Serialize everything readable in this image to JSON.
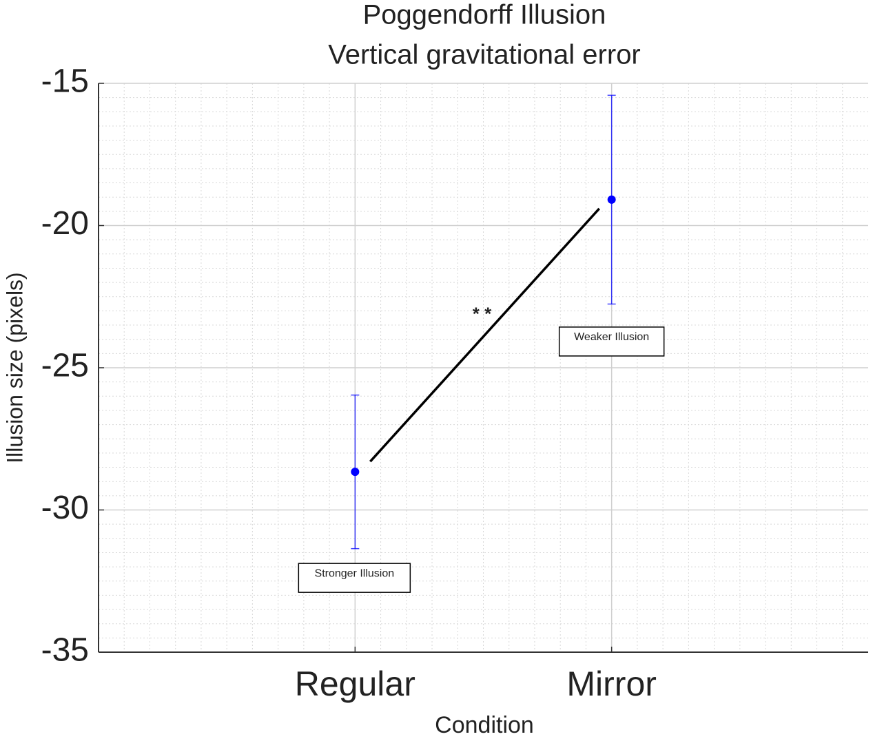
{
  "chart_data": {
    "type": "errorbar",
    "title": "Poggendorff Illusion",
    "subtitle": "Vertical gravitational error",
    "x_label": "Condition",
    "y_label": "Illusion size (pixels)",
    "categories": [
      "Regular",
      "Mirror"
    ],
    "values": [
      -28.66,
      -19.09
    ],
    "errors": [
      2.7,
      3.67
    ],
    "color": "#0000ff",
    "ylim": [
      -35,
      -15
    ],
    "yticks": [
      -35,
      -30,
      -25,
      -20,
      -15
    ],
    "grid": true,
    "minor_grid": true,
    "annotations": {
      "significance": "* *",
      "point_labels": [
        "Stronger Illusion",
        "Weaker Illusion"
      ]
    }
  }
}
